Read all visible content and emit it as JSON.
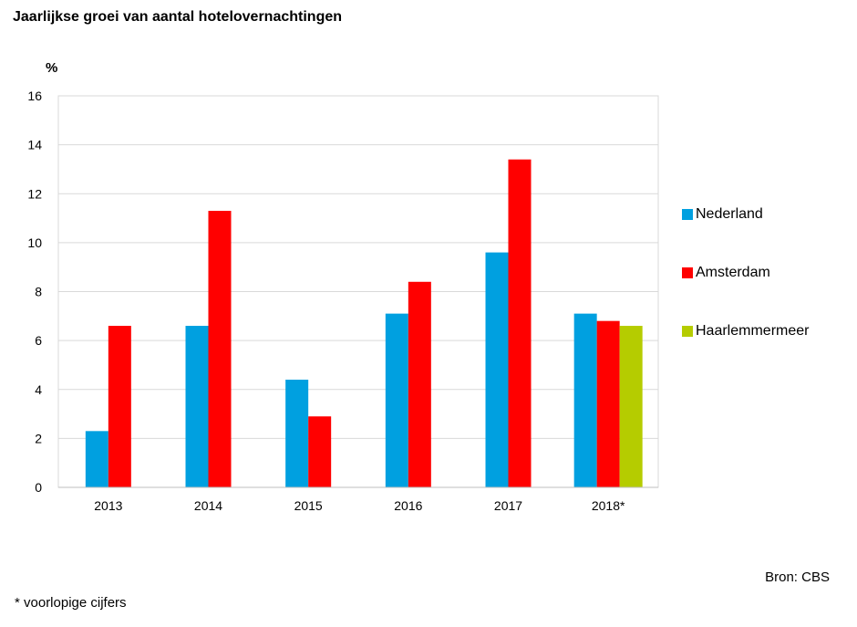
{
  "chart_data": {
    "type": "bar",
    "title": "Jaarlijkse groei van aantal hotelovernachtingen",
    "ylabel": "%",
    "xlabel": "",
    "ylim": [
      0,
      16
    ],
    "yticks": [
      0,
      2,
      4,
      6,
      8,
      10,
      12,
      14,
      16
    ],
    "grid": true,
    "legend_position": "right",
    "categories": [
      "2013",
      "2014",
      "2015",
      "2016",
      "2017",
      "2018*"
    ],
    "series": [
      {
        "name": "Nederland",
        "color": "#00A0E0",
        "values": [
          2.3,
          6.6,
          4.4,
          7.1,
          9.6,
          7.1
        ]
      },
      {
        "name": "Amsterdam",
        "color": "#FF0000",
        "values": [
          6.6,
          11.3,
          2.9,
          8.4,
          13.4,
          6.8
        ]
      },
      {
        "name": "Haarlemmermeer",
        "color": "#B5CC00",
        "values": [
          null,
          null,
          null,
          null,
          null,
          6.6
        ]
      }
    ]
  },
  "source": "Bron: CBS",
  "footnote": "* voorlopige cijfers"
}
